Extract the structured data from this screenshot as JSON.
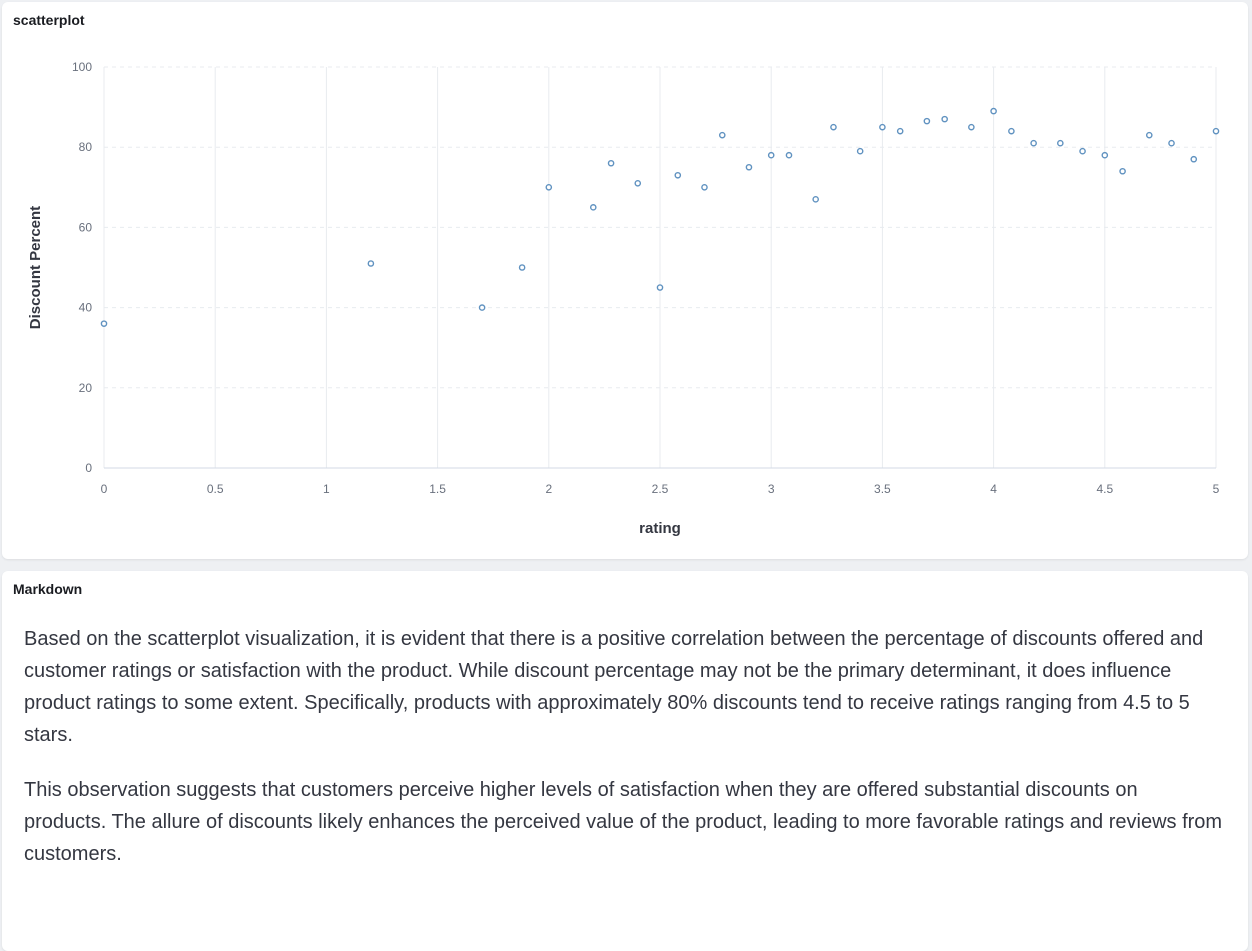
{
  "chart_panel": {
    "title": "scatterplot"
  },
  "markdown_panel": {
    "title": "Markdown",
    "paragraphs": [
      "Based on the scatterplot visualization, it is evident that there is a positive correlation between the percentage of discounts offered and customer ratings or satisfaction with the product. While discount percentage may not be the primary determinant, it does influence product ratings to some extent. Specifically, products with approximately 80% discounts tend to receive ratings ranging from 4.5 to 5 stars.",
      "This observation suggests that customers perceive higher levels of satisfaction when they are offered substantial discounts on products. The allure of discounts likely enhances the perceived value of the product, leading to more favorable ratings and reviews from customers."
    ]
  },
  "chart_data": {
    "type": "scatter",
    "xlabel": "rating",
    "ylabel": "Discount Percent",
    "xlim": [
      0,
      5
    ],
    "ylim": [
      0,
      100
    ],
    "x_ticks": [
      "0",
      "0.5",
      "1",
      "1.5",
      "2",
      "2.5",
      "3",
      "3.5",
      "4",
      "4.5",
      "5"
    ],
    "y_ticks": [
      "0",
      "20",
      "40",
      "60",
      "80",
      "100"
    ],
    "grid": true,
    "point_color": "#6092c0",
    "points": [
      {
        "x": 0,
        "y": 36
      },
      {
        "x": 1.2,
        "y": 51
      },
      {
        "x": 1.7,
        "y": 40
      },
      {
        "x": 1.88,
        "y": 50
      },
      {
        "x": 2.0,
        "y": 70
      },
      {
        "x": 2.2,
        "y": 65
      },
      {
        "x": 2.28,
        "y": 76
      },
      {
        "x": 2.4,
        "y": 71
      },
      {
        "x": 2.5,
        "y": 45
      },
      {
        "x": 2.58,
        "y": 73
      },
      {
        "x": 2.7,
        "y": 70
      },
      {
        "x": 2.78,
        "y": 83
      },
      {
        "x": 2.9,
        "y": 75
      },
      {
        "x": 3.0,
        "y": 78
      },
      {
        "x": 3.08,
        "y": 78
      },
      {
        "x": 3.2,
        "y": 67
      },
      {
        "x": 3.28,
        "y": 85
      },
      {
        "x": 3.4,
        "y": 79
      },
      {
        "x": 3.5,
        "y": 85
      },
      {
        "x": 3.58,
        "y": 84
      },
      {
        "x": 3.7,
        "y": 86.5
      },
      {
        "x": 3.78,
        "y": 87
      },
      {
        "x": 3.9,
        "y": 85
      },
      {
        "x": 4.0,
        "y": 89
      },
      {
        "x": 4.08,
        "y": 84
      },
      {
        "x": 4.18,
        "y": 81
      },
      {
        "x": 4.3,
        "y": 81
      },
      {
        "x": 4.4,
        "y": 79
      },
      {
        "x": 4.5,
        "y": 78
      },
      {
        "x": 4.58,
        "y": 74
      },
      {
        "x": 4.7,
        "y": 83
      },
      {
        "x": 4.8,
        "y": 81
      },
      {
        "x": 4.9,
        "y": 77
      },
      {
        "x": 5.0,
        "y": 84
      }
    ]
  }
}
